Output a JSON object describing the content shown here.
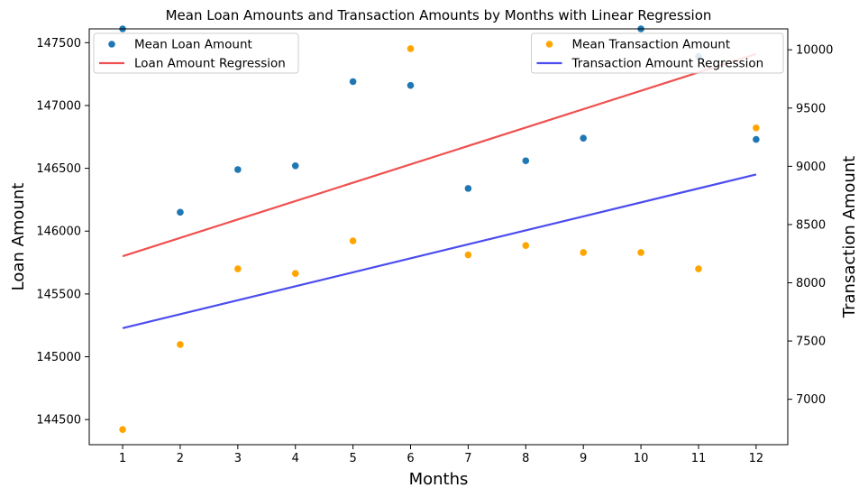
{
  "chart_data": {
    "type": "scatter",
    "title": "Mean Loan Amounts and Transaction Amounts by Months with Linear Regression",
    "xlabel": "Months",
    "ylabel": "Loan Amount",
    "y2label": "Transaction Amount",
    "x": [
      1,
      2,
      3,
      4,
      5,
      6,
      7,
      8,
      9,
      10,
      11,
      12
    ],
    "xlim": [
      0.42,
      12.55
    ],
    "xticks": [
      "1",
      "2",
      "3",
      "4",
      "5",
      "6",
      "7",
      "8",
      "9",
      "10",
      "11",
      "12"
    ],
    "ylim": [
      144300,
      147610
    ],
    "yticks": [
      "144500",
      "145000",
      "145500",
      "146000",
      "146500",
      "147000",
      "147500"
    ],
    "y2lim": [
      6610,
      10180
    ],
    "y2ticks": [
      "7000",
      "7500",
      "8000",
      "8500",
      "9000",
      "9500",
      "10000"
    ],
    "grid": false,
    "series": [
      {
        "name": "Mean Loan Amount",
        "axis": "left",
        "kind": "scatter",
        "color": "#1f77b4",
        "values": [
          147610,
          146150,
          146490,
          146520,
          147190,
          147160,
          146340,
          146560,
          146740,
          147610,
          147390,
          146730
        ]
      },
      {
        "name": "Loan Amount Regression",
        "axis": "left",
        "kind": "line",
        "color": "#f05050",
        "start": [
          1,
          145800
        ],
        "end": [
          12,
          147410
        ]
      },
      {
        "name": "Mean Transaction Amount",
        "axis": "right",
        "kind": "scatter",
        "color": "#ffa500",
        "values": [
          6740,
          7470,
          8120,
          8080,
          8360,
          10010,
          8240,
          8320,
          8260,
          8260,
          8120,
          9330
        ]
      },
      {
        "name": "Transaction Amount Regression",
        "axis": "right",
        "kind": "line",
        "color": "#4c4cf0",
        "start": [
          1,
          7610
        ],
        "end": [
          12,
          8930
        ]
      }
    ],
    "legends": [
      {
        "placement": "upper-left",
        "items": [
          0,
          1
        ]
      },
      {
        "placement": "upper-right",
        "items": [
          2,
          3
        ]
      }
    ]
  }
}
